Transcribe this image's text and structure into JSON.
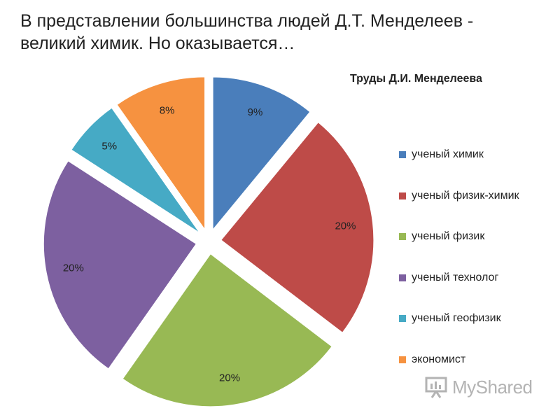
{
  "headline": {
    "line1": "В представлении большинства людей Д.Т. Менделеев -",
    "line2": "великий химик. Но оказывается…"
  },
  "watermark": {
    "text": "MyShared",
    "icon": "presentation-board-icon"
  },
  "chart_data": {
    "type": "pie",
    "title": "Труды Д.И. Менделеева",
    "legend_position": "right",
    "exploded": true,
    "series": [
      {
        "name": "ученый химик",
        "value": 9,
        "label": "9%",
        "color": "#4A7EBB"
      },
      {
        "name": "ученый физик-химик",
        "value": 20,
        "label": "20%",
        "color": "#BE4B48"
      },
      {
        "name": "ученый физик",
        "value": 20,
        "label": "20%",
        "color": "#98B954"
      },
      {
        "name": "ученый технолог",
        "value": 20,
        "label": "20%",
        "color": "#7D60A0"
      },
      {
        "name": "ученый геофизик",
        "value": 5,
        "label": "5%",
        "color": "#46AAC5"
      },
      {
        "name": "экономист",
        "value": 8,
        "label": "8%",
        "color": "#F69240"
      }
    ]
  }
}
